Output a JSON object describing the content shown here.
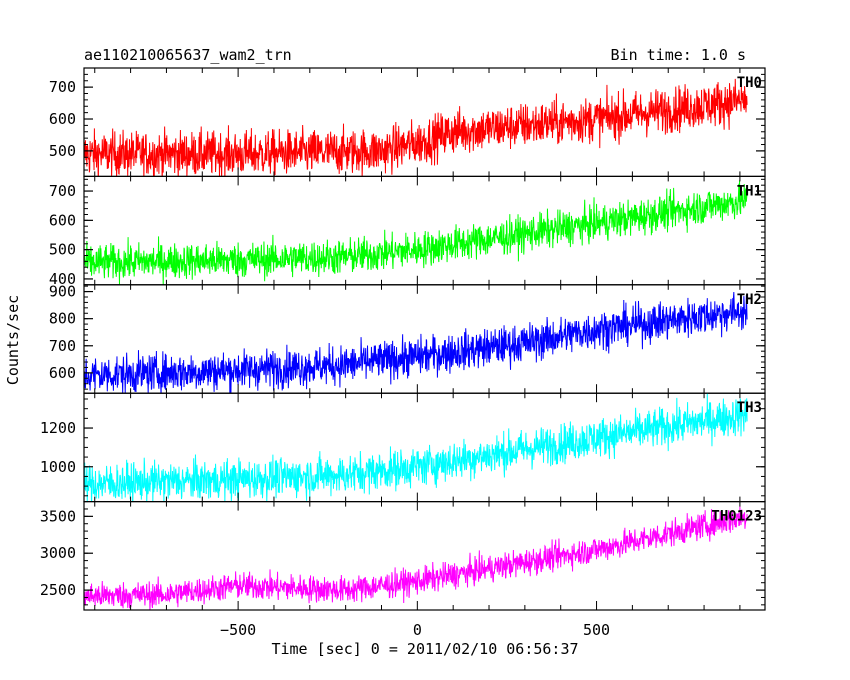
{
  "header": {
    "title": "ae110210065637_wam2_trn",
    "bin_time": "Bin time: 1.0 s"
  },
  "axes": {
    "xlabel": "Time [sec] 0 = 2011/02/10 06:56:37",
    "ylabel": "Counts/sec"
  },
  "chart_data": {
    "type": "line",
    "title": "ae110210065637_wam2_trn",
    "xlabel": "Time [sec] 0 = 2011/02/10 06:56:37",
    "ylabel": "Counts/sec",
    "xlim": [
      -930,
      970
    ],
    "x_ticks": [
      -500,
      0,
      500
    ],
    "x_range_data": [
      -930,
      920
    ],
    "bin_time_s": 1.0,
    "grid": false,
    "panels": [
      {
        "name": "TH0",
        "color": "#ff0000",
        "ylim": [
          420,
          760
        ],
        "y_ticks": [
          500,
          600,
          700
        ],
        "trend": [
          [
            -930,
            490
          ],
          [
            -500,
            490
          ],
          [
            -100,
            500
          ],
          [
            0,
            525
          ],
          [
            100,
            560
          ],
          [
            500,
            600
          ],
          [
            920,
            660
          ]
        ],
        "noise": 35
      },
      {
        "name": "TH1",
        "color": "#00ff00",
        "ylim": [
          380,
          750
        ],
        "y_ticks": [
          400,
          500,
          600,
          700
        ],
        "trend": [
          [
            -930,
            455
          ],
          [
            -500,
            465
          ],
          [
            -200,
            475
          ],
          [
            0,
            500
          ],
          [
            500,
            590
          ],
          [
            920,
            670
          ]
        ],
        "noise": 30
      },
      {
        "name": "TH2",
        "color": "#0000ff",
        "ylim": [
          525,
          925
        ],
        "y_ticks": [
          600,
          700,
          800,
          900
        ],
        "trend": [
          [
            -930,
            590
          ],
          [
            -500,
            610
          ],
          [
            -200,
            630
          ],
          [
            0,
            660
          ],
          [
            300,
            710
          ],
          [
            500,
            760
          ],
          [
            920,
            830
          ]
        ],
        "noise": 35
      },
      {
        "name": "TH3",
        "color": "#00ffff",
        "ylim": [
          820,
          1380
        ],
        "y_ticks": [
          1000,
          1200
        ],
        "trend": [
          [
            -930,
            910
          ],
          [
            -500,
            935
          ],
          [
            -200,
            960
          ],
          [
            0,
            1000
          ],
          [
            500,
            1150
          ],
          [
            920,
            1270
          ]
        ],
        "noise": 50
      },
      {
        "name": "TH0123",
        "color": "#ff00ff",
        "ylim": [
          2230,
          3700
        ],
        "y_ticks": [
          2500,
          3000,
          3500
        ],
        "trend": [
          [
            -930,
            2420
          ],
          [
            -700,
            2440
          ],
          [
            -500,
            2560
          ],
          [
            -200,
            2500
          ],
          [
            0,
            2620
          ],
          [
            500,
            3050
          ],
          [
            920,
            3500
          ]
        ],
        "noise": 90
      }
    ]
  }
}
